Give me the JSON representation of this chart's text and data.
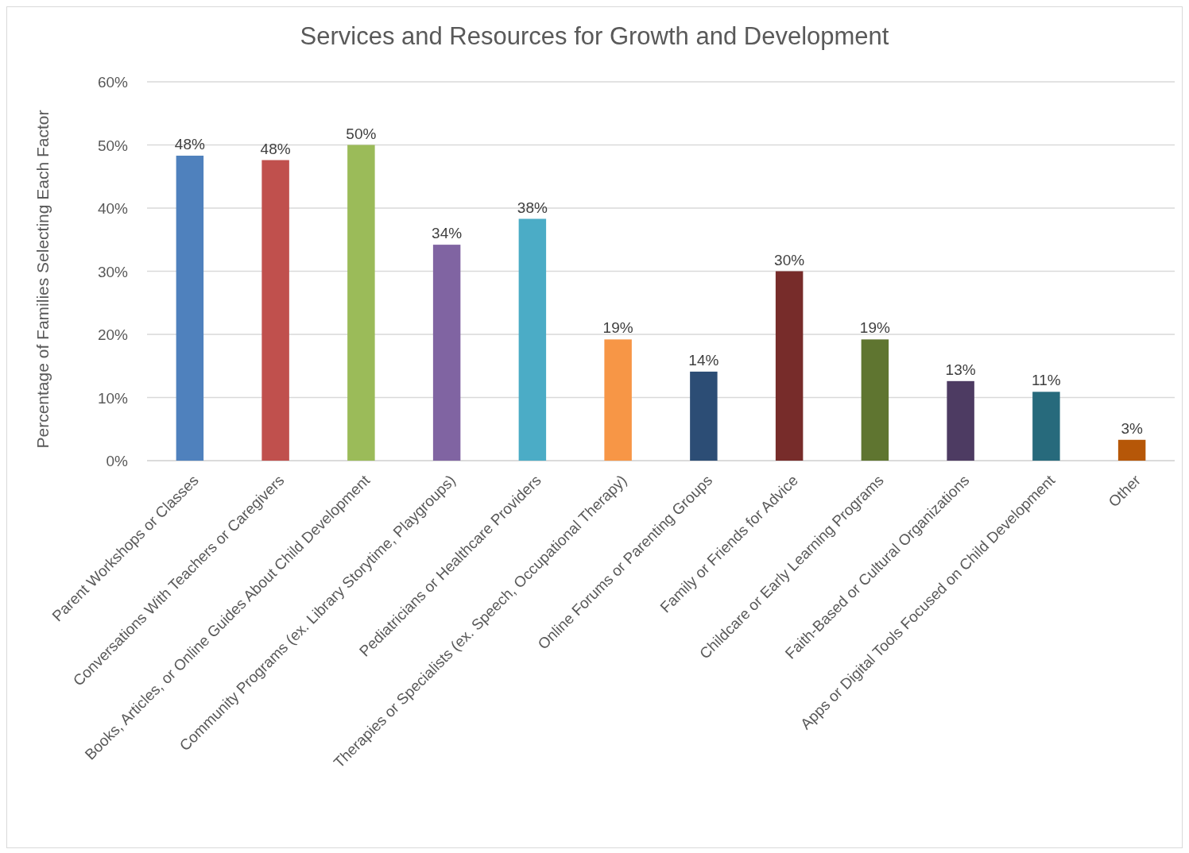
{
  "chart_data": {
    "type": "bar",
    "title": "Services and Resources for Growth and Development",
    "ylabel": "Percentage of Families Selecting Each Factor",
    "categories": [
      "Parent Workshops or Classes",
      "Conversations With Teachers or Caregivers",
      "Books, Articles, or Online Guides About Child Development",
      "Community Programs (ex. Library Storytime, Playgroups)",
      "Pediatricians or Healthcare Providers",
      "Therapies or Specialists (ex. Speech, Occupational Therapy)",
      "Online Forums or Parenting Groups",
      "Family or Friends for Advice",
      "Childcare or Early Learning Programs",
      "Faith-Based or Cultural Organizations",
      "Apps or Digital Tools Focused on Child Development",
      "Other"
    ],
    "values": [
      48.3,
      47.6,
      50,
      34.2,
      38.3,
      19.2,
      14.1,
      30,
      19.2,
      12.6,
      10.9,
      3.3
    ],
    "value_labels": [
      "48%",
      "48%",
      "50%",
      "34%",
      "38%",
      "19%",
      "14%",
      "30%",
      "19%",
      "13%",
      "11%",
      "3%"
    ],
    "colors": [
      "#4f81bd",
      "#c0504d",
      "#9bbb59",
      "#8064a2",
      "#4bacc6",
      "#f79646",
      "#2c4d75",
      "#772c2a",
      "#5f7530",
      "#4d3b62",
      "#276a7c",
      "#b65708"
    ],
    "ylim": [
      0,
      60
    ],
    "yticks": [
      {
        "value": 0,
        "label": "0%"
      },
      {
        "value": 10,
        "label": "10%"
      },
      {
        "value": 20,
        "label": "20%"
      },
      {
        "value": 30,
        "label": "30%"
      },
      {
        "value": 40,
        "label": "40%"
      },
      {
        "value": 50,
        "label": "50%"
      },
      {
        "value": 60,
        "label": "60%"
      }
    ],
    "grid": "y"
  }
}
